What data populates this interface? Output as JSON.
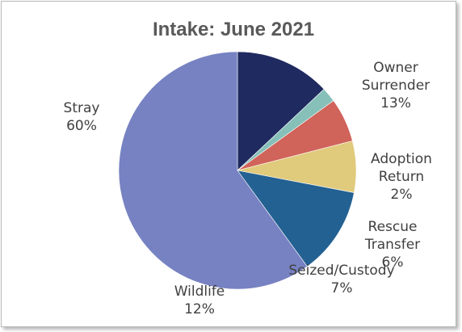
{
  "chart_data": {
    "type": "pie",
    "title": "Intake: June 2021",
    "slices": [
      {
        "label": [
          "Owner",
          "Surrender"
        ],
        "value": 13,
        "pct": "13%",
        "color": "#1f2a60"
      },
      {
        "label": [
          "Adoption",
          "Return"
        ],
        "value": 2,
        "pct": "2%",
        "color": "#86c0b8"
      },
      {
        "label": [
          "Rescue",
          "Transfer"
        ],
        "value": 6,
        "pct": "6%",
        "color": "#d0635a"
      },
      {
        "label": [
          "Seized/Custody"
        ],
        "value": 7,
        "pct": "7%",
        "color": "#e0ca7c"
      },
      {
        "label": [
          "Wildlife"
        ],
        "value": 12,
        "pct": "12%",
        "color": "#236192"
      },
      {
        "label": [
          "Stray"
        ],
        "value": 60,
        "pct": "60%",
        "color": "#7782c2"
      }
    ],
    "start_angle_deg": 90,
    "direction": "clockwise"
  }
}
